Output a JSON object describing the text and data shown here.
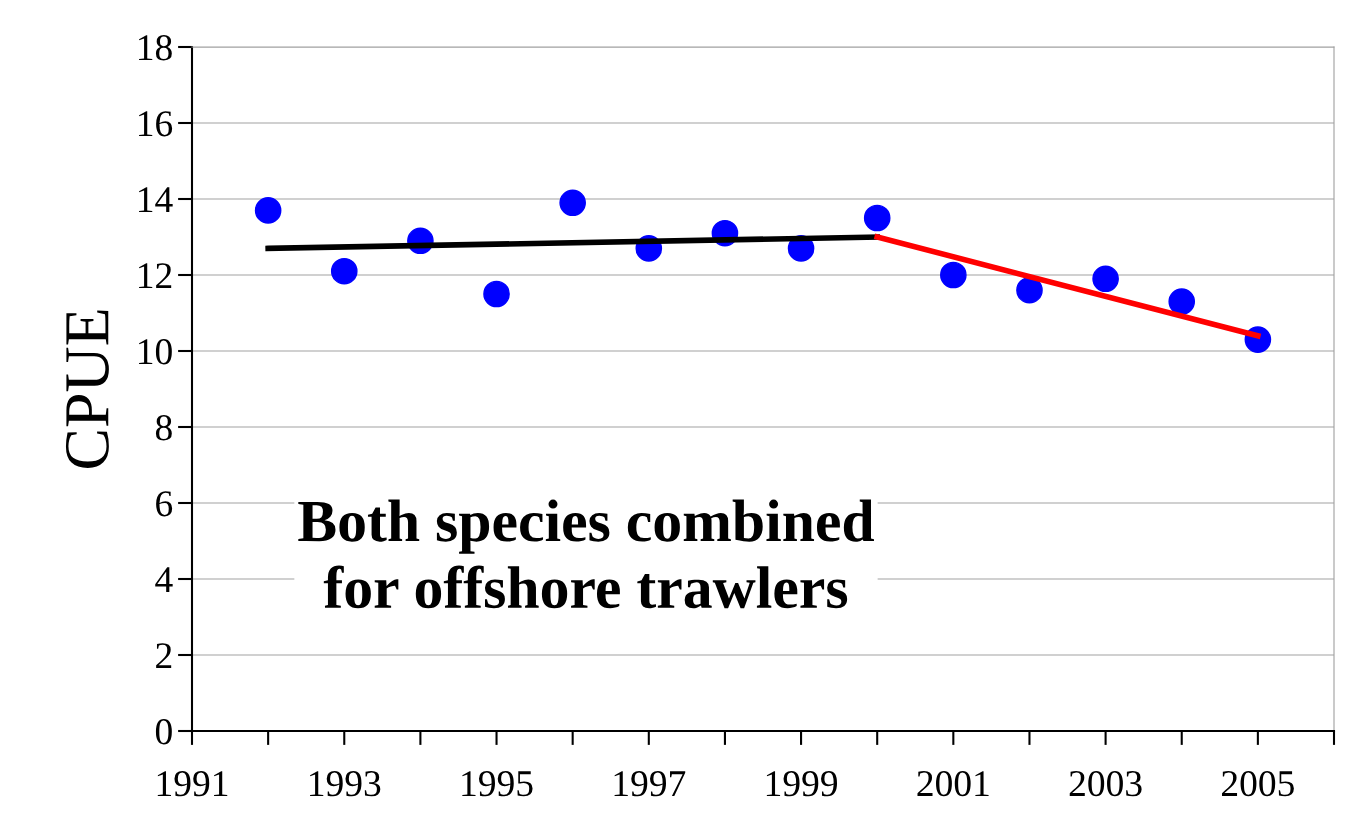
{
  "chart_data": {
    "type": "scatter",
    "ylabel": "CPUE",
    "x": [
      1992,
      1993,
      1994,
      1995,
      1996,
      1997,
      1998,
      1999,
      2000,
      2001,
      2002,
      2003,
      2004,
      2005
    ],
    "series": [
      {
        "marker": "circle",
        "color": "#0000ff",
        "values": [
          13.7,
          12.1,
          12.9,
          11.5,
          13.9,
          12.7,
          13.1,
          12.7,
          13.5,
          12.0,
          11.6,
          11.9,
          11.3,
          10.3
        ]
      },
      {
        "type": "line",
        "marker": "none",
        "color": "#000000",
        "x": [
          1992,
          2000
        ],
        "values": [
          12.7,
          13.0
        ]
      },
      {
        "type": "line",
        "marker": "none",
        "color": "#ff0000",
        "x": [
          2000,
          2005
        ],
        "values": [
          13.0,
          10.4
        ]
      }
    ],
    "annotations": [
      "Both species combined\nfor offshore trawlers"
    ],
    "xlim": [
      1991,
      2006
    ],
    "xticks": [
      1991,
      {
        "value": 1992,
        "label": null
      },
      1993,
      {
        "value": 1994,
        "label": null
      },
      1995,
      {
        "value": 1996,
        "label": null
      },
      1997,
      {
        "value": 1998,
        "label": null
      },
      1999,
      {
        "value": 2000,
        "label": null
      },
      2001,
      {
        "value": 2002,
        "label": null
      },
      2003,
      {
        "value": 2004,
        "label": null
      },
      2005,
      {
        "value": 2006,
        "label": null
      }
    ],
    "ylim": [
      0,
      18
    ],
    "yticks": [
      0,
      2,
      4,
      6,
      8,
      10,
      12,
      14,
      16,
      18
    ],
    "grid": "y",
    "line_style": "solid"
  }
}
